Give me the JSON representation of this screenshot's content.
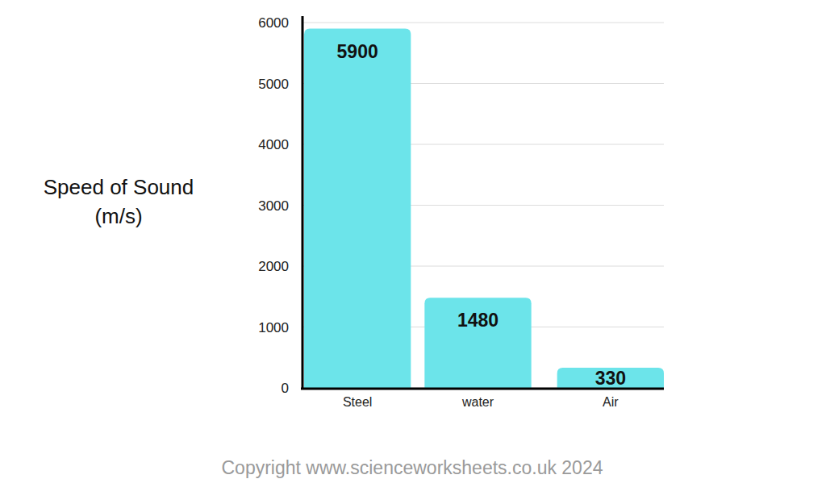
{
  "chart_data": {
    "type": "bar",
    "y_label": "Speed of Sound\n(m/s)",
    "categories": [
      "Steel",
      "water",
      "Air"
    ],
    "values": [
      5900,
      1480,
      330
    ],
    "color": "#6ce4ea",
    "ylim": [
      0,
      6000
    ],
    "yticks": [
      0,
      1000,
      2000,
      3000,
      4000,
      5000,
      6000
    ],
    "grid": true,
    "data_labels": true,
    "annotation": "Copyright www.scienceworksheets.co.uk 2024"
  }
}
